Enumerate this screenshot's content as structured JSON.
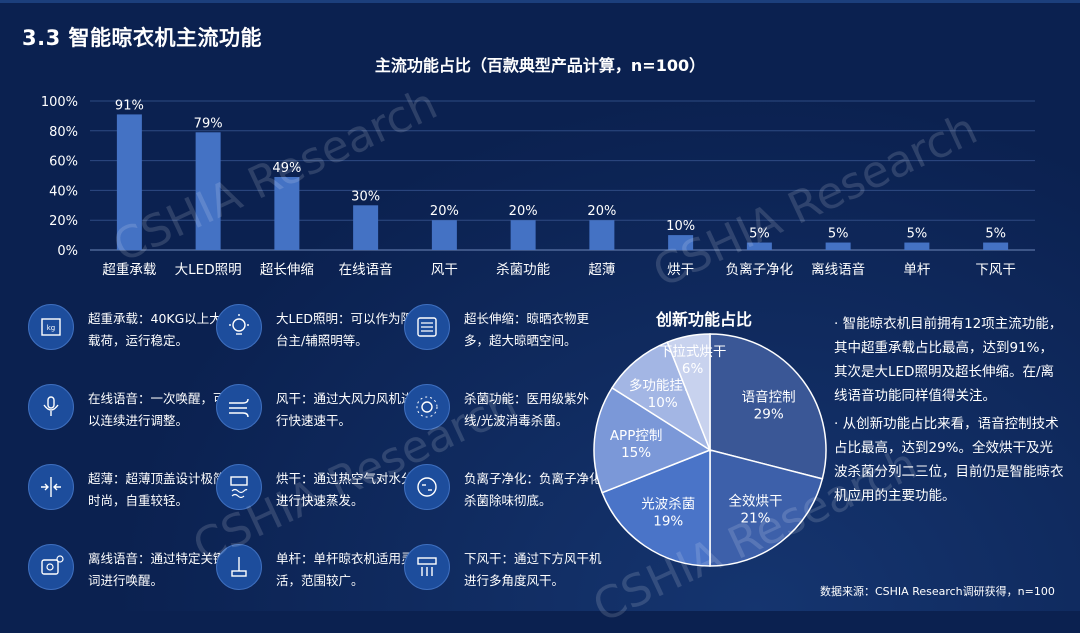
{
  "page_title": "3.3 智能晾衣机主流功能",
  "watermark": "CSHIA Research",
  "colors": {
    "background": "#0b2150",
    "bar": "#4472c4",
    "pie_border": "#ffffff"
  },
  "chart_data": [
    {
      "type": "bar",
      "title": "主流功能占比（百款典型产品计算，n=100）",
      "categories": [
        "超重承载",
        "大LED照明",
        "超长伸缩",
        "在线语音",
        "风干",
        "杀菌功能",
        "超薄",
        "烘干",
        "负离子净化",
        "离线语音",
        "单杆",
        "下风干"
      ],
      "values": [
        91,
        79,
        49,
        30,
        20,
        20,
        20,
        10,
        5,
        5,
        5,
        5
      ],
      "value_labels": [
        "91%",
        "79%",
        "49%",
        "30%",
        "20%",
        "20%",
        "20%",
        "10%",
        "5%",
        "5%",
        "5%",
        "5%"
      ],
      "ylim": [
        0,
        100
      ],
      "yticks": [
        "0%",
        "20%",
        "40%",
        "60%",
        "80%",
        "100%"
      ],
      "grid": true
    },
    {
      "type": "pie",
      "title": "创新功能占比",
      "labels": [
        "语音控制",
        "全效烘干",
        "光波杀菌",
        "APP控制",
        "多功能挂钩",
        "下拉式烘干"
      ],
      "values": [
        29,
        21,
        19,
        15,
        10,
        6
      ],
      "value_labels": [
        "29%",
        "21%",
        "19%",
        "15%",
        "10%",
        "6%"
      ],
      "colors": [
        "#3a5796",
        "#3d60aa",
        "#4a74c8",
        "#7b98d8",
        "#a3b6e4",
        "#c8d2ee"
      ]
    }
  ],
  "features": [
    {
      "icon": "weight-scale-icon",
      "text": "超重承载：40KG以上大载荷，运行稳定。"
    },
    {
      "icon": "light-bulb-icon",
      "text": "大LED照明：可以作为阳台主/辅照明等。"
    },
    {
      "icon": "extend-rods-icon",
      "text": "超长伸缩：晾晒衣物更多，超大晾晒空间。"
    },
    {
      "icon": "microphone-icon",
      "text": "在线语音：一次唤醒，可以连续进行调整。"
    },
    {
      "icon": "wind-icon",
      "text": "风干：通过大风力风机进行快速速干。"
    },
    {
      "icon": "sterilize-icon",
      "text": "杀菌功能：医用级紫外线/光波消毒杀菌。"
    },
    {
      "icon": "slim-profile-icon",
      "text": "超薄：超薄顶盖设计极简时尚，自重较轻。"
    },
    {
      "icon": "heat-dry-icon",
      "text": "烘干：通过热空气对水分进行快速蒸发。"
    },
    {
      "icon": "negative-ion-icon",
      "text": "负离子净化：负离子净化杀菌除味彻底。"
    },
    {
      "icon": "offline-voice-icon",
      "text": "离线语音：通过特定关键词进行唤醒。"
    },
    {
      "icon": "single-rod-icon",
      "text": "单杆：单杆晾衣机适用灵活，范围较广。"
    },
    {
      "icon": "down-airflow-icon",
      "text": "下风干：通过下方风干机进行多角度风干。"
    }
  ],
  "insights": [
    "· 智能晾衣机目前拥有12项主流功能，其中超重承载占比最高，达到91%，其次是大LED照明及超长伸缩。在/离线语音功能同样值得关注。",
    "· 从创新功能占比来看，语音控制技术占比最高，达到29%。全效烘干及光波杀菌分列二三位，目前仍是智能晾衣机应用的主要功能。"
  ],
  "source": "数据来源：CSHIA Research调研获得，n=100"
}
